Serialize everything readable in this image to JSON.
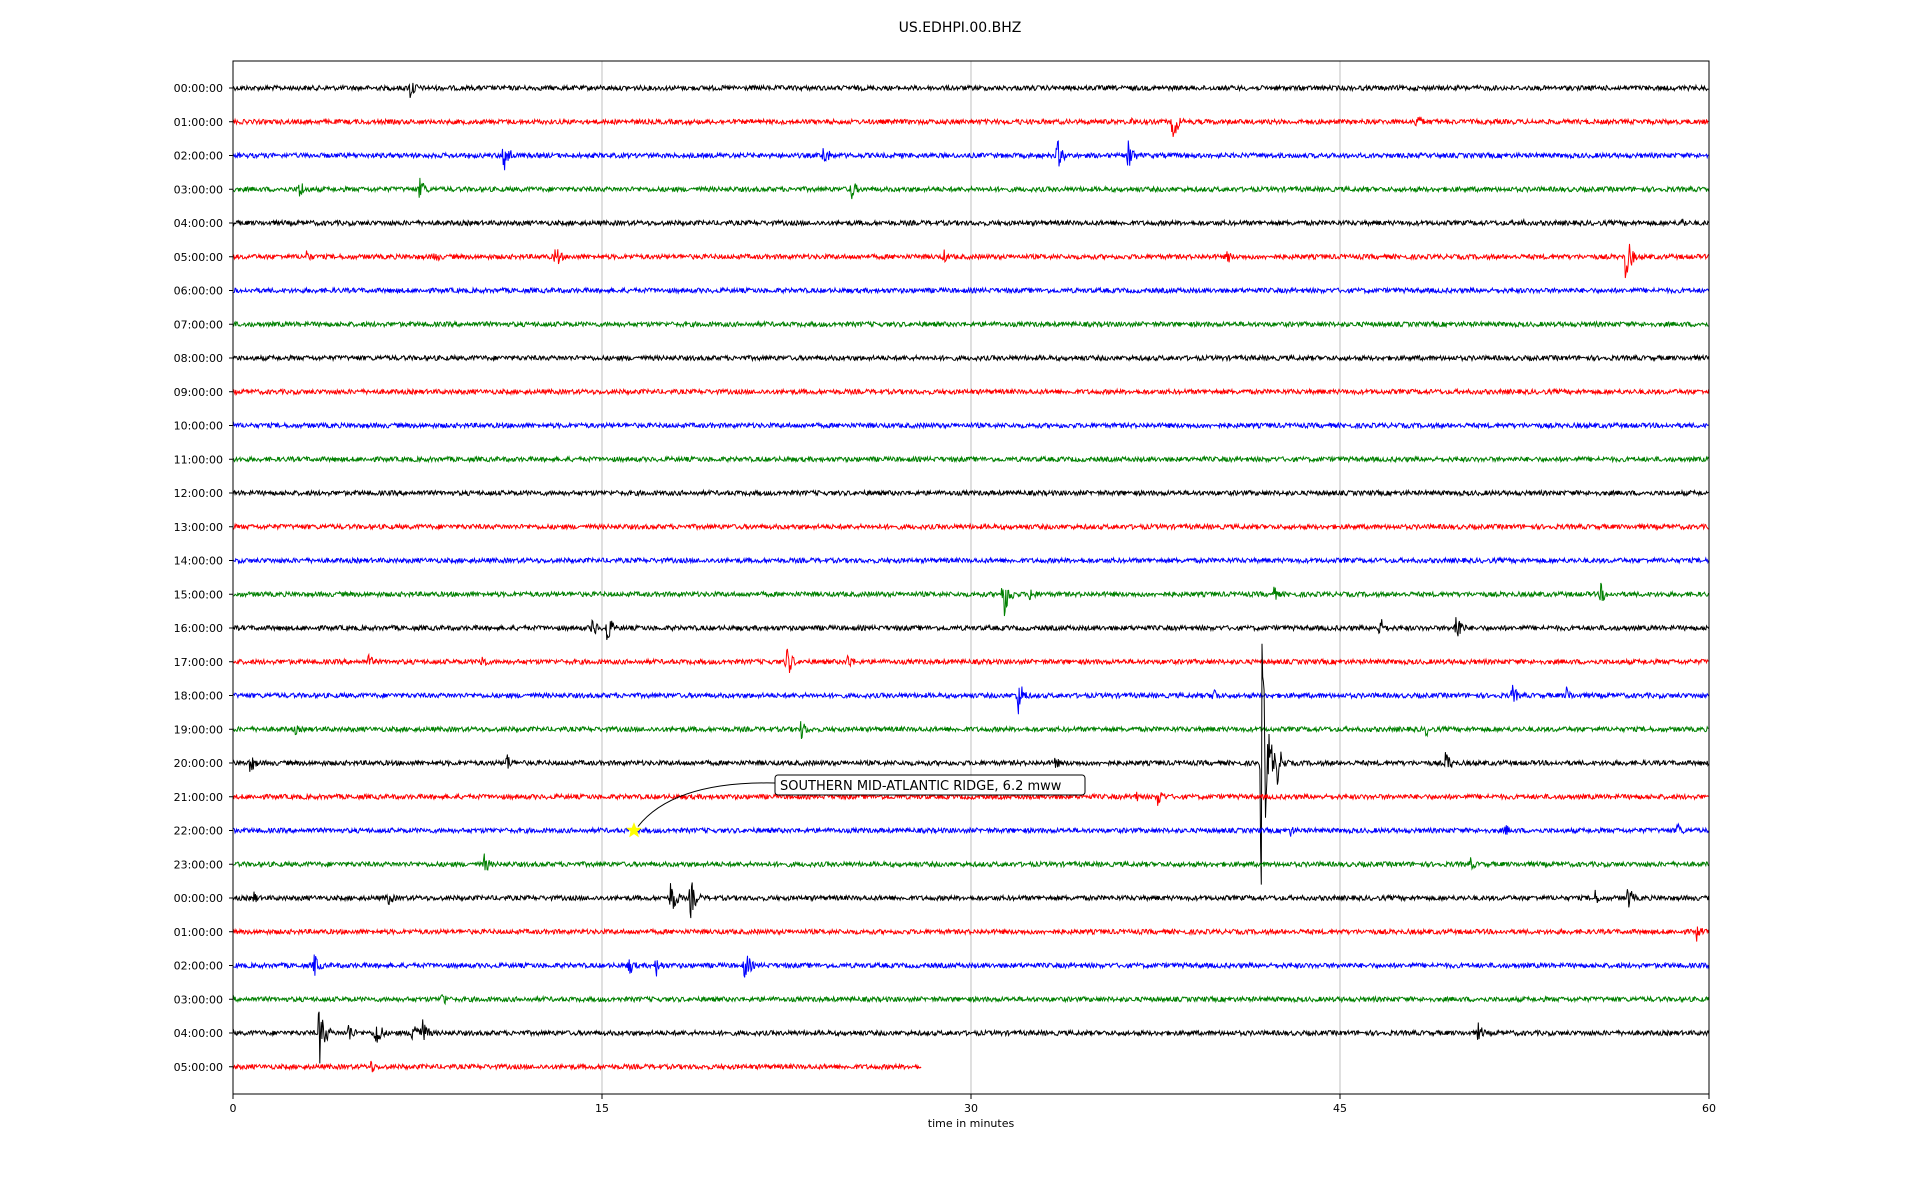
{
  "chart_data": {
    "type": "line",
    "title": "US.EDHPI.00.BHZ",
    "xlabel": "time in minutes",
    "ylabel": "",
    "xlim": [
      0,
      60
    ],
    "xticks": [
      "0",
      "15",
      "30",
      "45",
      "60"
    ],
    "grid": "vertical lines at 15, 30, 45",
    "color_cycle": [
      "#000000",
      "#ff0000",
      "#0000ff",
      "#008000"
    ],
    "rows": [
      {
        "label": "00:00:00",
        "color": "#000000",
        "end": 60,
        "events": [
          {
            "t": 7.2,
            "a": 14
          }
        ]
      },
      {
        "label": "01:00:00",
        "color": "#ff0000",
        "end": 60,
        "events": [
          {
            "t": 38.2,
            "a": 22
          },
          {
            "t": 48.1,
            "a": 12
          },
          {
            "t": 36.5,
            "a": 6
          },
          {
            "t": 31.9,
            "a": 5
          }
        ]
      },
      {
        "label": "02:00:00",
        "color": "#0000ff",
        "end": 60,
        "events": [
          {
            "t": 11.0,
            "a": 22
          },
          {
            "t": 24.0,
            "a": 14
          },
          {
            "t": 33.5,
            "a": 18
          },
          {
            "t": 36.4,
            "a": 18
          }
        ]
      },
      {
        "label": "03:00:00",
        "color": "#008000",
        "end": 60,
        "events": [
          {
            "t": 2.7,
            "a": 12
          },
          {
            "t": 7.6,
            "a": 14
          },
          {
            "t": 25.1,
            "a": 14
          }
        ]
      },
      {
        "label": "04:00:00",
        "color": "#000000",
        "end": 60,
        "events": [
          {
            "t": 52.3,
            "a": 7
          },
          {
            "t": 58.9,
            "a": 7
          }
        ]
      },
      {
        "label": "05:00:00",
        "color": "#ff0000",
        "end": 60,
        "events": [
          {
            "t": 3.0,
            "a": 8
          },
          {
            "t": 8.2,
            "a": 8
          },
          {
            "t": 13.1,
            "a": 14
          },
          {
            "t": 40.4,
            "a": 9
          },
          {
            "t": 56.6,
            "a": 28
          },
          {
            "t": 28.9,
            "a": 8
          }
        ]
      },
      {
        "label": "06:00:00",
        "color": "#0000ff",
        "end": 60,
        "events": []
      },
      {
        "label": "07:00:00",
        "color": "#008000",
        "end": 60,
        "events": []
      },
      {
        "label": "08:00:00",
        "color": "#000000",
        "end": 60,
        "events": []
      },
      {
        "label": "09:00:00",
        "color": "#ff0000",
        "end": 60,
        "events": []
      },
      {
        "label": "10:00:00",
        "color": "#0000ff",
        "end": 60,
        "events": []
      },
      {
        "label": "11:00:00",
        "color": "#008000",
        "end": 60,
        "events": []
      },
      {
        "label": "12:00:00",
        "color": "#000000",
        "end": 60,
        "events": []
      },
      {
        "label": "13:00:00",
        "color": "#ff0000",
        "end": 60,
        "events": []
      },
      {
        "label": "14:00:00",
        "color": "#0000ff",
        "end": 60,
        "events": []
      },
      {
        "label": "15:00:00",
        "color": "#008000",
        "end": 60,
        "events": [
          {
            "t": 31.3,
            "a": 30
          },
          {
            "t": 32.4,
            "a": 10
          },
          {
            "t": 42.3,
            "a": 9
          },
          {
            "t": 55.6,
            "a": 12
          }
        ]
      },
      {
        "label": "16:00:00",
        "color": "#000000",
        "end": 60,
        "events": [
          {
            "t": 14.6,
            "a": 12
          },
          {
            "t": 15.2,
            "a": 18
          },
          {
            "t": 46.6,
            "a": 14
          },
          {
            "t": 49.7,
            "a": 20
          }
        ]
      },
      {
        "label": "17:00:00",
        "color": "#ff0000",
        "end": 60,
        "events": [
          {
            "t": 5.5,
            "a": 9
          },
          {
            "t": 10.1,
            "a": 10
          },
          {
            "t": 22.5,
            "a": 20
          },
          {
            "t": 25.0,
            "a": 10
          }
        ]
      },
      {
        "label": "18:00:00",
        "color": "#0000ff",
        "end": 60,
        "events": [
          {
            "t": 31.9,
            "a": 22
          },
          {
            "t": 39.8,
            "a": 12
          },
          {
            "t": 52.0,
            "a": 12
          },
          {
            "t": 54.2,
            "a": 10
          }
        ]
      },
      {
        "label": "19:00:00",
        "color": "#008000",
        "end": 60,
        "events": [
          {
            "t": 2.5,
            "a": 7
          },
          {
            "t": 23.1,
            "a": 12
          },
          {
            "t": 48.5,
            "a": 8
          }
        ]
      },
      {
        "label": "20:00:00",
        "color": "#000000",
        "end": 60,
        "events": [
          {
            "t": 0.7,
            "a": 12
          },
          {
            "t": 11.1,
            "a": 12
          },
          {
            "t": 41.8,
            "a": 140
          },
          {
            "t": 42.4,
            "a": 28
          },
          {
            "t": 49.3,
            "a": 14
          },
          {
            "t": 33.4,
            "a": 8
          }
        ]
      },
      {
        "label": "21:00:00",
        "color": "#ff0000",
        "end": 60,
        "events": [
          {
            "t": 37.6,
            "a": 12
          },
          {
            "t": 36.6,
            "a": 10
          }
        ]
      },
      {
        "label": "22:00:00",
        "color": "#0000ff",
        "end": 60,
        "events": [
          {
            "t": 43.0,
            "a": 7
          },
          {
            "t": 51.7,
            "a": 8
          },
          {
            "t": 58.7,
            "a": 10
          }
        ]
      },
      {
        "label": "23:00:00",
        "color": "#008000",
        "end": 60,
        "events": [
          {
            "t": 10.2,
            "a": 12
          },
          {
            "t": 50.3,
            "a": 8
          }
        ]
      },
      {
        "label": "00:00:00",
        "color": "#000000",
        "end": 60,
        "events": [
          {
            "t": 0.8,
            "a": 9
          },
          {
            "t": 6.3,
            "a": 10
          },
          {
            "t": 17.8,
            "a": 22
          },
          {
            "t": 18.6,
            "a": 22
          },
          {
            "t": 55.3,
            "a": 12
          },
          {
            "t": 56.7,
            "a": 14
          }
        ]
      },
      {
        "label": "01:00:00",
        "color": "#ff0000",
        "end": 60,
        "events": [
          {
            "t": 59.5,
            "a": 10
          }
        ]
      },
      {
        "label": "02:00:00",
        "color": "#0000ff",
        "end": 60,
        "events": [
          {
            "t": 3.3,
            "a": 14
          },
          {
            "t": 16.1,
            "a": 12
          },
          {
            "t": 17.2,
            "a": 12
          },
          {
            "t": 20.8,
            "a": 18
          }
        ]
      },
      {
        "label": "03:00:00",
        "color": "#008000",
        "end": 60,
        "events": [
          {
            "t": 8.5,
            "a": 10
          }
        ]
      },
      {
        "label": "04:00:00",
        "color": "#000000",
        "end": 60,
        "events": [
          {
            "t": 3.5,
            "a": 35
          },
          {
            "t": 5.8,
            "a": 20
          },
          {
            "t": 7.3,
            "a": 22
          },
          {
            "t": 7.7,
            "a": 16
          },
          {
            "t": 4.7,
            "a": 12
          },
          {
            "t": 50.6,
            "a": 12
          }
        ]
      },
      {
        "label": "05:00:00",
        "color": "#ff0000",
        "end": 28,
        "events": [
          {
            "t": 5.6,
            "a": 8
          }
        ]
      }
    ],
    "annotation": {
      "text": "SOUTHERN MID-ATLANTIC RIDGE, 6.2 mww",
      "row": 22,
      "t": 16.3,
      "marker_color": "#ffff00"
    }
  }
}
